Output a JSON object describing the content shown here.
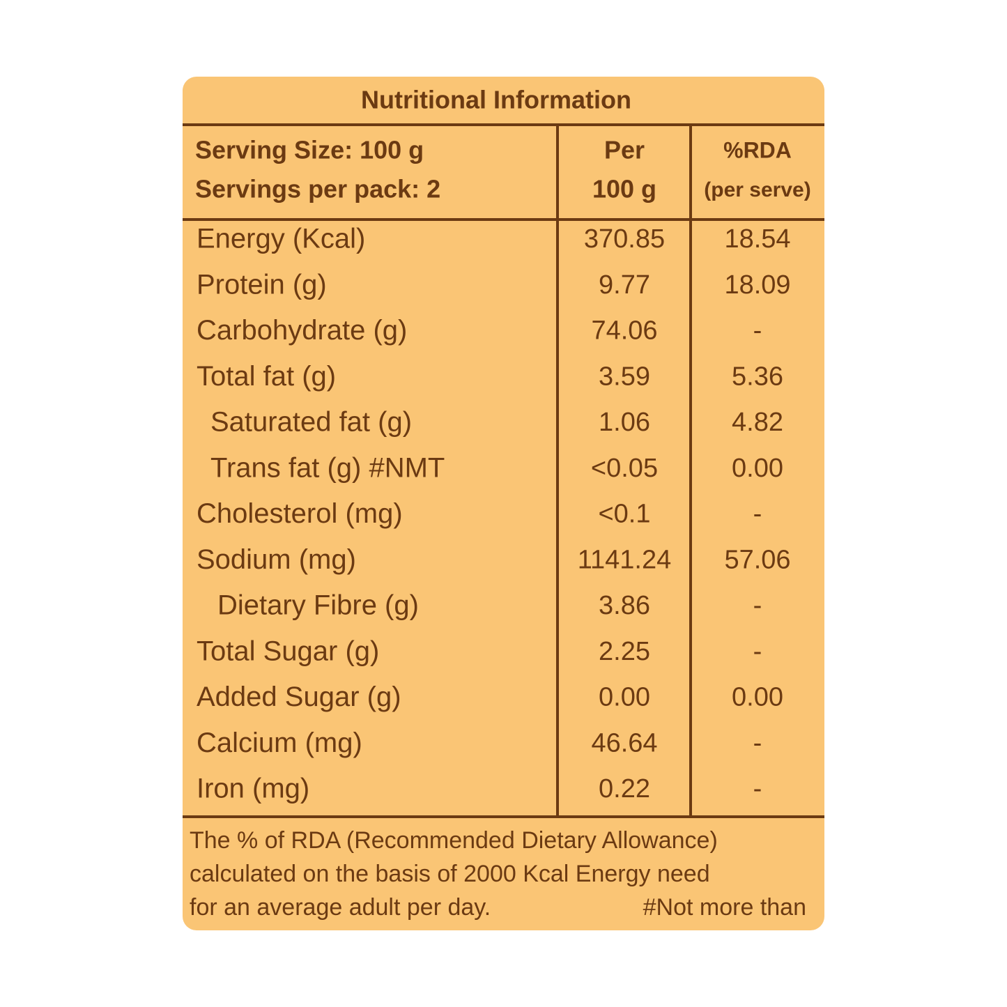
{
  "header": {
    "title": "Nutritional Information",
    "serving_lines": [
      "Serving Size: 100 g",
      "Servings per pack: 2"
    ],
    "per_column": [
      "Per",
      "100 g"
    ],
    "rda_column": [
      "%RDA",
      "(per serve)"
    ]
  },
  "table": {
    "rows": [
      [
        "Energy (Kcal)",
        "370.85",
        "18.54"
      ],
      [
        "Protein (g)",
        "9.77",
        "18.09"
      ],
      [
        "Carbohydrate (g)",
        "74.06",
        "-"
      ],
      [
        "Total fat (g)",
        "3.59",
        "5.36"
      ],
      [
        "Saturated fat (g)",
        "1.06",
        "4.82"
      ],
      [
        "Trans fat (g) #NMT",
        "<0.05",
        "0.00"
      ],
      [
        "Cholesterol (mg)",
        "<0.1",
        "-"
      ],
      [
        "Sodium (mg)",
        "1141.24",
        "57.06"
      ],
      [
        "Dietary Fibre (g)",
        "3.86",
        "-"
      ],
      [
        "Total Sugar (g)",
        "2.25",
        "-"
      ],
      [
        "Added Sugar (g)",
        "0.00",
        "0.00"
      ],
      [
        "Calcium (mg)",
        "46.64",
        "-"
      ],
      [
        "Iron (mg)",
        "0.22",
        "-"
      ]
    ]
  },
  "footer": {
    "lines": [
      "The % of RDA (Recommended Dietary Allowance)",
      "calculated on the basis of 2000 Kcal Energy need",
      "for an average adult per day."
    ],
    "footnote": "#Not more than"
  }
}
